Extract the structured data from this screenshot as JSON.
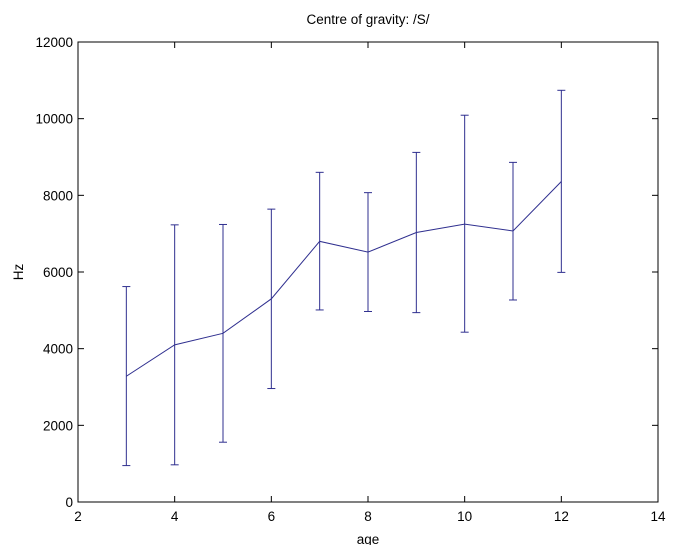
{
  "chart_data": {
    "type": "line",
    "title": "Centre of gravity: /S/",
    "xlabel": "age",
    "ylabel": "Hz",
    "xlim": [
      2,
      14
    ],
    "ylim": [
      0,
      12000
    ],
    "xticks": [
      2,
      4,
      6,
      8,
      10,
      12,
      14
    ],
    "yticks": [
      0,
      2000,
      4000,
      6000,
      8000,
      10000,
      12000
    ],
    "grid": false,
    "legend": "none",
    "series": [
      {
        "x": [
          3,
          4,
          5,
          6,
          7,
          8,
          9,
          10,
          11,
          12
        ],
        "y": [
          3280,
          4100,
          4400,
          5300,
          6800,
          6520,
          7030,
          7250,
          7070,
          8360
        ],
        "error_lower": [
          950,
          970,
          1560,
          2960,
          5010,
          4970,
          4940,
          4430,
          5270,
          5990
        ],
        "error_upper": [
          5620,
          7230,
          7240,
          7640,
          8600,
          8070,
          9120,
          10090,
          8860,
          10740
        ],
        "color": "#2f2f8f"
      }
    ]
  }
}
